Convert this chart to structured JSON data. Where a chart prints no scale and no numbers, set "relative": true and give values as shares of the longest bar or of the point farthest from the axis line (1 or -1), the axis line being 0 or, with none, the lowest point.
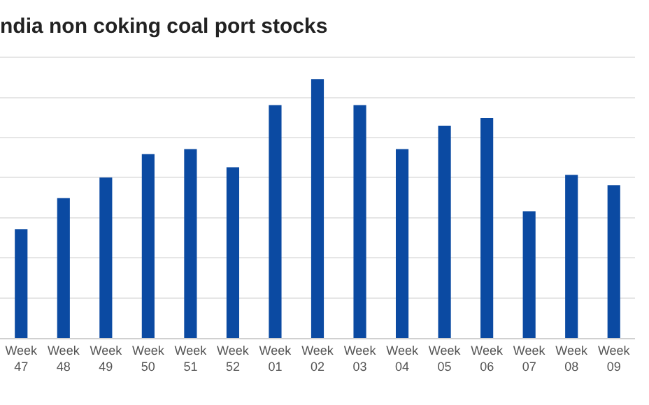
{
  "chart_data": {
    "type": "bar",
    "title": "ndia non coking coal port stocks",
    "relative": true,
    "categories": [
      "Week 47",
      "Week 48",
      "Week 49",
      "Week 50",
      "Week 51",
      "Week 52",
      "Week 01",
      "Week 02",
      "Week 03",
      "Week 04",
      "Week 05",
      "Week 06",
      "Week 07",
      "Week 08",
      "Week 09"
    ],
    "values": [
      0.42,
      0.54,
      0.62,
      0.71,
      0.73,
      0.66,
      0.9,
      1,
      0.9,
      0.73,
      0.82,
      0.85,
      0.49,
      0.63,
      0.59
    ],
    "color": "#0b4aa2",
    "grid": "y"
  }
}
